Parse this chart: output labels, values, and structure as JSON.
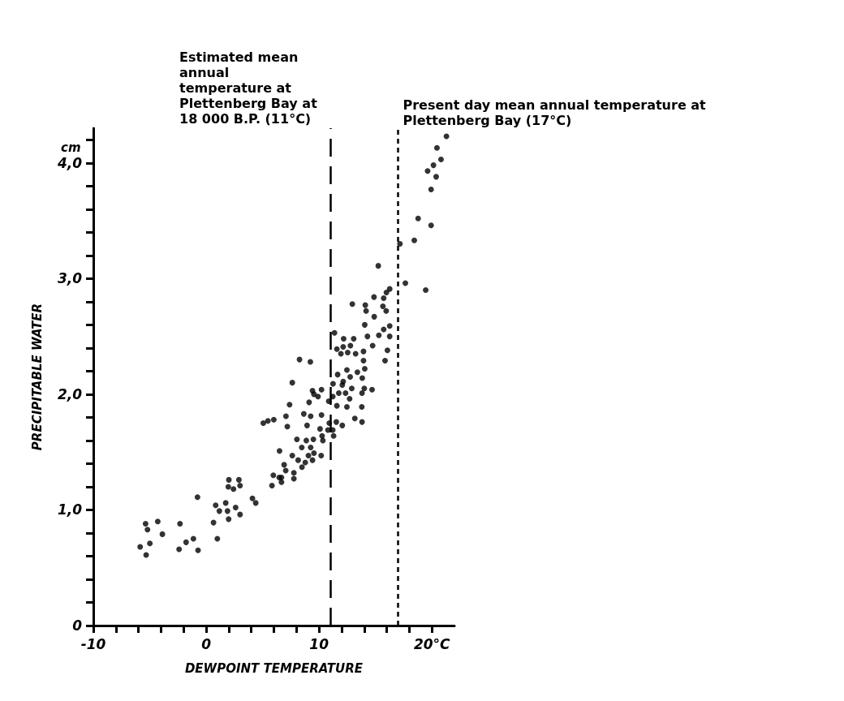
{
  "chart_data": {
    "type": "scatter",
    "xlabel": "DEWPOINT TEMPERATURE",
    "ylabel": "PRECIPITABLE WATER",
    "annotations": [
      "cm"
    ],
    "xlim": [
      -10,
      22
    ],
    "ylim": [
      0,
      4.3
    ],
    "xticks": [
      -10,
      {
        "value": -8,
        "label": null
      },
      {
        "value": -6,
        "label": null
      },
      {
        "value": -4,
        "label": null
      },
      {
        "value": -2,
        "label": null
      },
      0,
      {
        "value": 2,
        "label": null
      },
      {
        "value": 4,
        "label": null
      },
      {
        "value": 6,
        "label": null
      },
      {
        "value": 8,
        "label": null
      },
      10,
      {
        "value": 12,
        "label": null
      },
      {
        "value": 14,
        "label": null
      },
      {
        "value": 16,
        "label": null
      },
      {
        "value": 18,
        "label": null
      },
      {
        "value": 20,
        "label": "20°C"
      }
    ],
    "yticks": [
      0,
      {
        "value": 0.2,
        "label": null
      },
      {
        "value": 0.4,
        "label": null
      },
      {
        "value": 0.6,
        "label": null
      },
      {
        "value": 0.8,
        "label": null
      },
      {
        "value": 1,
        "label": "1,0"
      },
      {
        "value": 1.2,
        "label": null
      },
      {
        "value": 1.4,
        "label": null
      },
      {
        "value": 1.6,
        "label": null
      },
      {
        "value": 1.8,
        "label": null
      },
      {
        "value": 2,
        "label": "2,0"
      },
      {
        "value": 2.2,
        "label": null
      },
      {
        "value": 2.4,
        "label": null
      },
      {
        "value": 2.6,
        "label": null
      },
      {
        "value": 2.8,
        "label": null
      },
      {
        "value": 3,
        "label": "3,0"
      },
      {
        "value": 3.2,
        "label": null
      },
      {
        "value": 3.4,
        "label": null
      },
      {
        "value": 3.6,
        "label": null
      },
      {
        "value": 3.8,
        "label": null
      },
      {
        "value": 4,
        "label": "4,0"
      },
      {
        "value": 4.2,
        "label": null
      }
    ],
    "grid": false,
    "marker": "circle",
    "ref_lines": [
      {
        "axis": "x",
        "value": 11,
        "label": "Estimated mean annual temperature at Plettenberg Bay at 18 000 B.P. (11°C)",
        "line_style": "dashed",
        "color": "#000000"
      },
      {
        "axis": "x",
        "value": 17,
        "label": "Present day mean annual temperature at Plettenberg Bay (17°C)",
        "line_style": "dotted",
        "color": "#000000"
      }
    ],
    "series": [
      {
        "color": "#000000",
        "x": [
          -5.37,
          -5.2,
          -4.29,
          -3.88,
          -5.85,
          -4.99,
          -5.32,
          -2.32,
          -2.4,
          -1.78,
          -1.13,
          -0.72,
          -0.77,
          0.65,
          0.99,
          0.84,
          1.17,
          1.73,
          1.89,
          1.99,
          2.61,
          3.0,
          2.01,
          2.9,
          1.96,
          2.42,
          3.0,
          4.1,
          4.39,
          5.95,
          5.83,
          6.67,
          6.67,
          7.05,
          7.77,
          8.49,
          6.47,
          7.77,
          12.95,
          14.1,
          14.17,
          15.66,
          15.95,
          14.89,
          14.05,
          16.26,
          15.73,
          15.3,
          14.29,
          16.26,
          11.37,
          12.18,
          13.07,
          14.75,
          12.78,
          12.14,
          11.58,
          11.94,
          12.54,
          13.24,
          13.94,
          16.06,
          13.94,
          15.85,
          8.27,
          9.23,
          14.05,
          13.4,
          12.47,
          11.65,
          12.76,
          13.83,
          7.63,
          12.14,
          12.06,
          11.24,
          12.9,
          14.01,
          14.7,
          13.81,
          9.42,
          10.22,
          9.55,
          9.91,
          11.75,
          12.35,
          11.22,
          9.12,
          10.86,
          12.71,
          7.39,
          11.58,
          12.47,
          13.79,
          8.65,
          9.26,
          10.22,
          7.07,
          13.17,
          13.81,
          5.99,
          5.47,
          5.06,
          7.19,
          8.94,
          10.91,
          11.53,
          12.06,
          10.09,
          10.79,
          11.22,
          11.29,
          10.27,
          10.34,
          8.04,
          8.87,
          9.5,
          8.47,
          9.26,
          6.5,
          7.63,
          9.06,
          9.55,
          10.19,
          8.15,
          8.78,
          9.42,
          6.91,
          21.29,
          20.45,
          20.81,
          20.14,
          19.62,
          20.38,
          19.93,
          18.78,
          19.93,
          18.44,
          17.17,
          15.25,
          17.65,
          19.45,
          16.26,
          15.97,
          14.87,
          15.73
        ],
        "values": [
          0.88,
          0.83,
          0.9,
          0.79,
          0.68,
          0.71,
          0.61,
          0.88,
          0.66,
          0.72,
          0.75,
          0.65,
          1.11,
          0.89,
          0.75,
          1.04,
          0.99,
          1.06,
          0.99,
          0.92,
          1.02,
          0.96,
          1.26,
          1.26,
          1.2,
          1.18,
          1.21,
          1.1,
          1.06,
          1.3,
          1.21,
          1.28,
          1.24,
          1.34,
          1.32,
          1.37,
          1.28,
          1.27,
          2.78,
          2.77,
          2.72,
          2.76,
          2.72,
          2.67,
          2.6,
          2.59,
          2.56,
          2.51,
          2.5,
          2.5,
          2.53,
          2.48,
          2.48,
          2.42,
          2.42,
          2.41,
          2.39,
          2.35,
          2.36,
          2.35,
          2.37,
          2.38,
          2.29,
          2.29,
          2.3,
          2.28,
          2.22,
          2.19,
          2.21,
          2.17,
          2.15,
          2.14,
          2.1,
          2.11,
          2.08,
          2.09,
          2.05,
          2.05,
          2.04,
          2.01,
          2.03,
          2.04,
          2.0,
          1.98,
          2.01,
          2.01,
          1.98,
          1.93,
          1.94,
          1.96,
          1.91,
          1.9,
          1.89,
          1.89,
          1.83,
          1.81,
          1.82,
          1.81,
          1.79,
          1.76,
          1.78,
          1.77,
          1.75,
          1.72,
          1.73,
          1.75,
          1.76,
          1.73,
          1.7,
          1.69,
          1.69,
          1.64,
          1.64,
          1.6,
          1.61,
          1.6,
          1.61,
          1.54,
          1.54,
          1.51,
          1.47,
          1.47,
          1.49,
          1.47,
          1.43,
          1.41,
          1.43,
          1.39,
          4.23,
          4.13,
          4.03,
          3.98,
          3.93,
          3.88,
          3.77,
          3.52,
          3.46,
          3.33,
          3.3,
          3.11,
          2.96,
          2.9,
          2.91,
          2.88,
          2.84,
          2.83
        ]
      }
    ]
  }
}
